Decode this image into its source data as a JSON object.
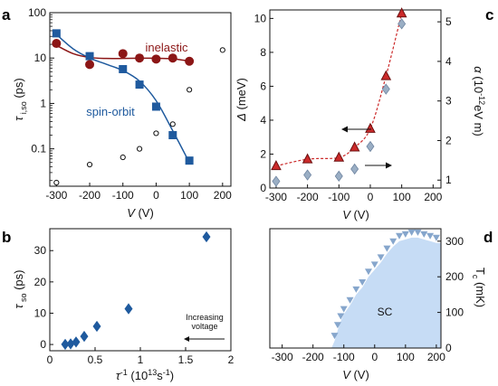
{
  "colors": {
    "blue": "#1f5a9e",
    "red": "#8c1616",
    "triangle_red": "#cc2a2a",
    "diamond_gray": "#9aaec4",
    "sc_fill": "#c6dcf5",
    "sc_marker": "#86a6cc"
  },
  "chart_data": [
    {
      "panel": "a",
      "type": "scatter",
      "yscale": "log",
      "xlabel_main": "V",
      "xlabel_unit": "(V)",
      "ylabel_main": "τ",
      "ylabel_sub": "i,so",
      "ylabel_unit": "(ps)",
      "xlim": [
        -320,
        225
      ],
      "ylim": [
        0.015,
        100
      ],
      "xticks": [
        -300,
        -200,
        -100,
        0,
        100,
        200
      ],
      "yticks": [
        0.1,
        1,
        10,
        100
      ],
      "series": [
        {
          "name": "spin-orbit",
          "marker": "square",
          "color": "#1f5a9e",
          "x": [
            -300,
            -200,
            -100,
            -50,
            0,
            50,
            100
          ],
          "y": [
            35,
            11,
            5.7,
            2.6,
            0.85,
            0.2,
            0.055
          ]
        },
        {
          "name": "inelastic",
          "marker": "circle",
          "color": "#8c1616",
          "x": [
            -300,
            -200,
            -100,
            -50,
            0,
            50,
            100
          ],
          "y": [
            21,
            7.2,
            12.5,
            10,
            9.5,
            10,
            8.5
          ]
        },
        {
          "name": "",
          "marker": "open-circle",
          "color": "#111111",
          "x": [
            -300,
            -200,
            -100,
            -50,
            0,
            50,
            100,
            200
          ],
          "y": [
            0.018,
            0.045,
            0.065,
            0.1,
            0.22,
            0.35,
            2,
            15
          ]
        }
      ],
      "fit_spin": [
        [
          -300,
          33
        ],
        [
          -250,
          16
        ],
        [
          -200,
          10
        ],
        [
          -150,
          7.3
        ],
        [
          -100,
          5.3
        ],
        [
          -50,
          3.1
        ],
        [
          0,
          1.15
        ],
        [
          50,
          0.25
        ],
        [
          100,
          0.05
        ]
      ],
      "fit_inel": [
        [
          -300,
          19
        ],
        [
          -250,
          12.5
        ],
        [
          -200,
          10.3
        ],
        [
          -150,
          9.8
        ],
        [
          -100,
          9.8
        ],
        [
          -50,
          9.9
        ],
        [
          0,
          9.9
        ],
        [
          50,
          9.6
        ],
        [
          100,
          8.6
        ]
      ]
    },
    {
      "panel": "b",
      "type": "scatter",
      "xlabel_main": "τ",
      "xlabel_sup": "-1",
      "xlabel_unit": "(10",
      "xlabel_unit_sup": "13",
      "xlabel_unit_tail": "s",
      "xlabel_unit_tail_sup": "-1",
      "xlabel_close": ")",
      "ylabel_main": "τ",
      "ylabel_sub": "so",
      "ylabel_unit": "(ps)",
      "xlim": [
        0,
        2
      ],
      "ylim": [
        -2,
        37
      ],
      "xticks": [
        0,
        0.5,
        1,
        1.5,
        2
      ],
      "yticks": [
        0,
        10,
        20,
        30
      ],
      "series": [
        {
          "name": "",
          "marker": "diamond",
          "color": "#1f5a9e",
          "x": [
            0.17,
            0.23,
            0.29,
            0.38,
            0.52,
            0.87,
            1.73
          ],
          "y": [
            0.05,
            0.2,
            0.8,
            2.6,
            5.8,
            11.4,
            34.4
          ]
        }
      ],
      "annotation": [
        "Increasing",
        "voltage"
      ]
    },
    {
      "panel": "c",
      "type": "scatter",
      "xlabel_main": "V",
      "xlabel_unit": "(V)",
      "ylabel_main": "Δ",
      "ylabel_unit": "(meV)",
      "y2label_main": "α",
      "y2label_unit": "(10",
      "y2label_sup": "-12",
      "y2label_tail": "eV m)",
      "xlim": [
        -320,
        225
      ],
      "ylim": [
        0,
        10.5
      ],
      "y2lim": [
        0.8,
        5.3
      ],
      "xticks": [
        -300,
        -200,
        -100,
        0,
        100,
        200
      ],
      "yticks": [
        0,
        2,
        4,
        6,
        8,
        10
      ],
      "y2ticks": [
        1,
        2,
        3,
        4,
        5
      ],
      "series": [
        {
          "name": "",
          "marker": "triangle",
          "color": "#cc2a2a",
          "axis": "left",
          "x": [
            -300,
            -200,
            -100,
            -50,
            0,
            50,
            100
          ],
          "y": [
            1.3,
            1.7,
            1.8,
            2.4,
            3.5,
            6.6,
            10.3
          ]
        },
        {
          "name": "",
          "marker": "diamond",
          "color": "#9aaec4",
          "axis": "right",
          "x": [
            -300,
            -200,
            -100,
            -50,
            0,
            50,
            100
          ],
          "y": [
            0.97,
            1.13,
            1.1,
            1.28,
            1.85,
            3.3,
            4.95
          ]
        }
      ]
    },
    {
      "panel": "d",
      "type": "area",
      "xlabel_main": "V",
      "xlabel_unit": "(V)",
      "ylabel_main": "T",
      "ylabel_sub": "c",
      "ylabel_unit": "(mK)",
      "xlim": [
        -340,
        215
      ],
      "ylim": [
        0,
        335
      ],
      "xticks": [
        -300,
        -200,
        -100,
        0,
        100,
        200
      ],
      "yticks": [
        0,
        100,
        200,
        300
      ],
      "region_label": "SC",
      "series": [
        {
          "name": "",
          "marker": "inverted-triangle",
          "color": "#86a6cc",
          "x": [
            -130,
            -120,
            -110,
            -100,
            -80,
            -60,
            -40,
            -20,
            0,
            20,
            40,
            60,
            80,
            100,
            120,
            140,
            160,
            180,
            200
          ],
          "y": [
            20,
            50,
            75,
            95,
            120,
            150,
            170,
            200,
            220,
            240,
            265,
            285,
            300,
            305,
            310,
            310,
            305,
            300,
            295
          ]
        }
      ]
    }
  ]
}
